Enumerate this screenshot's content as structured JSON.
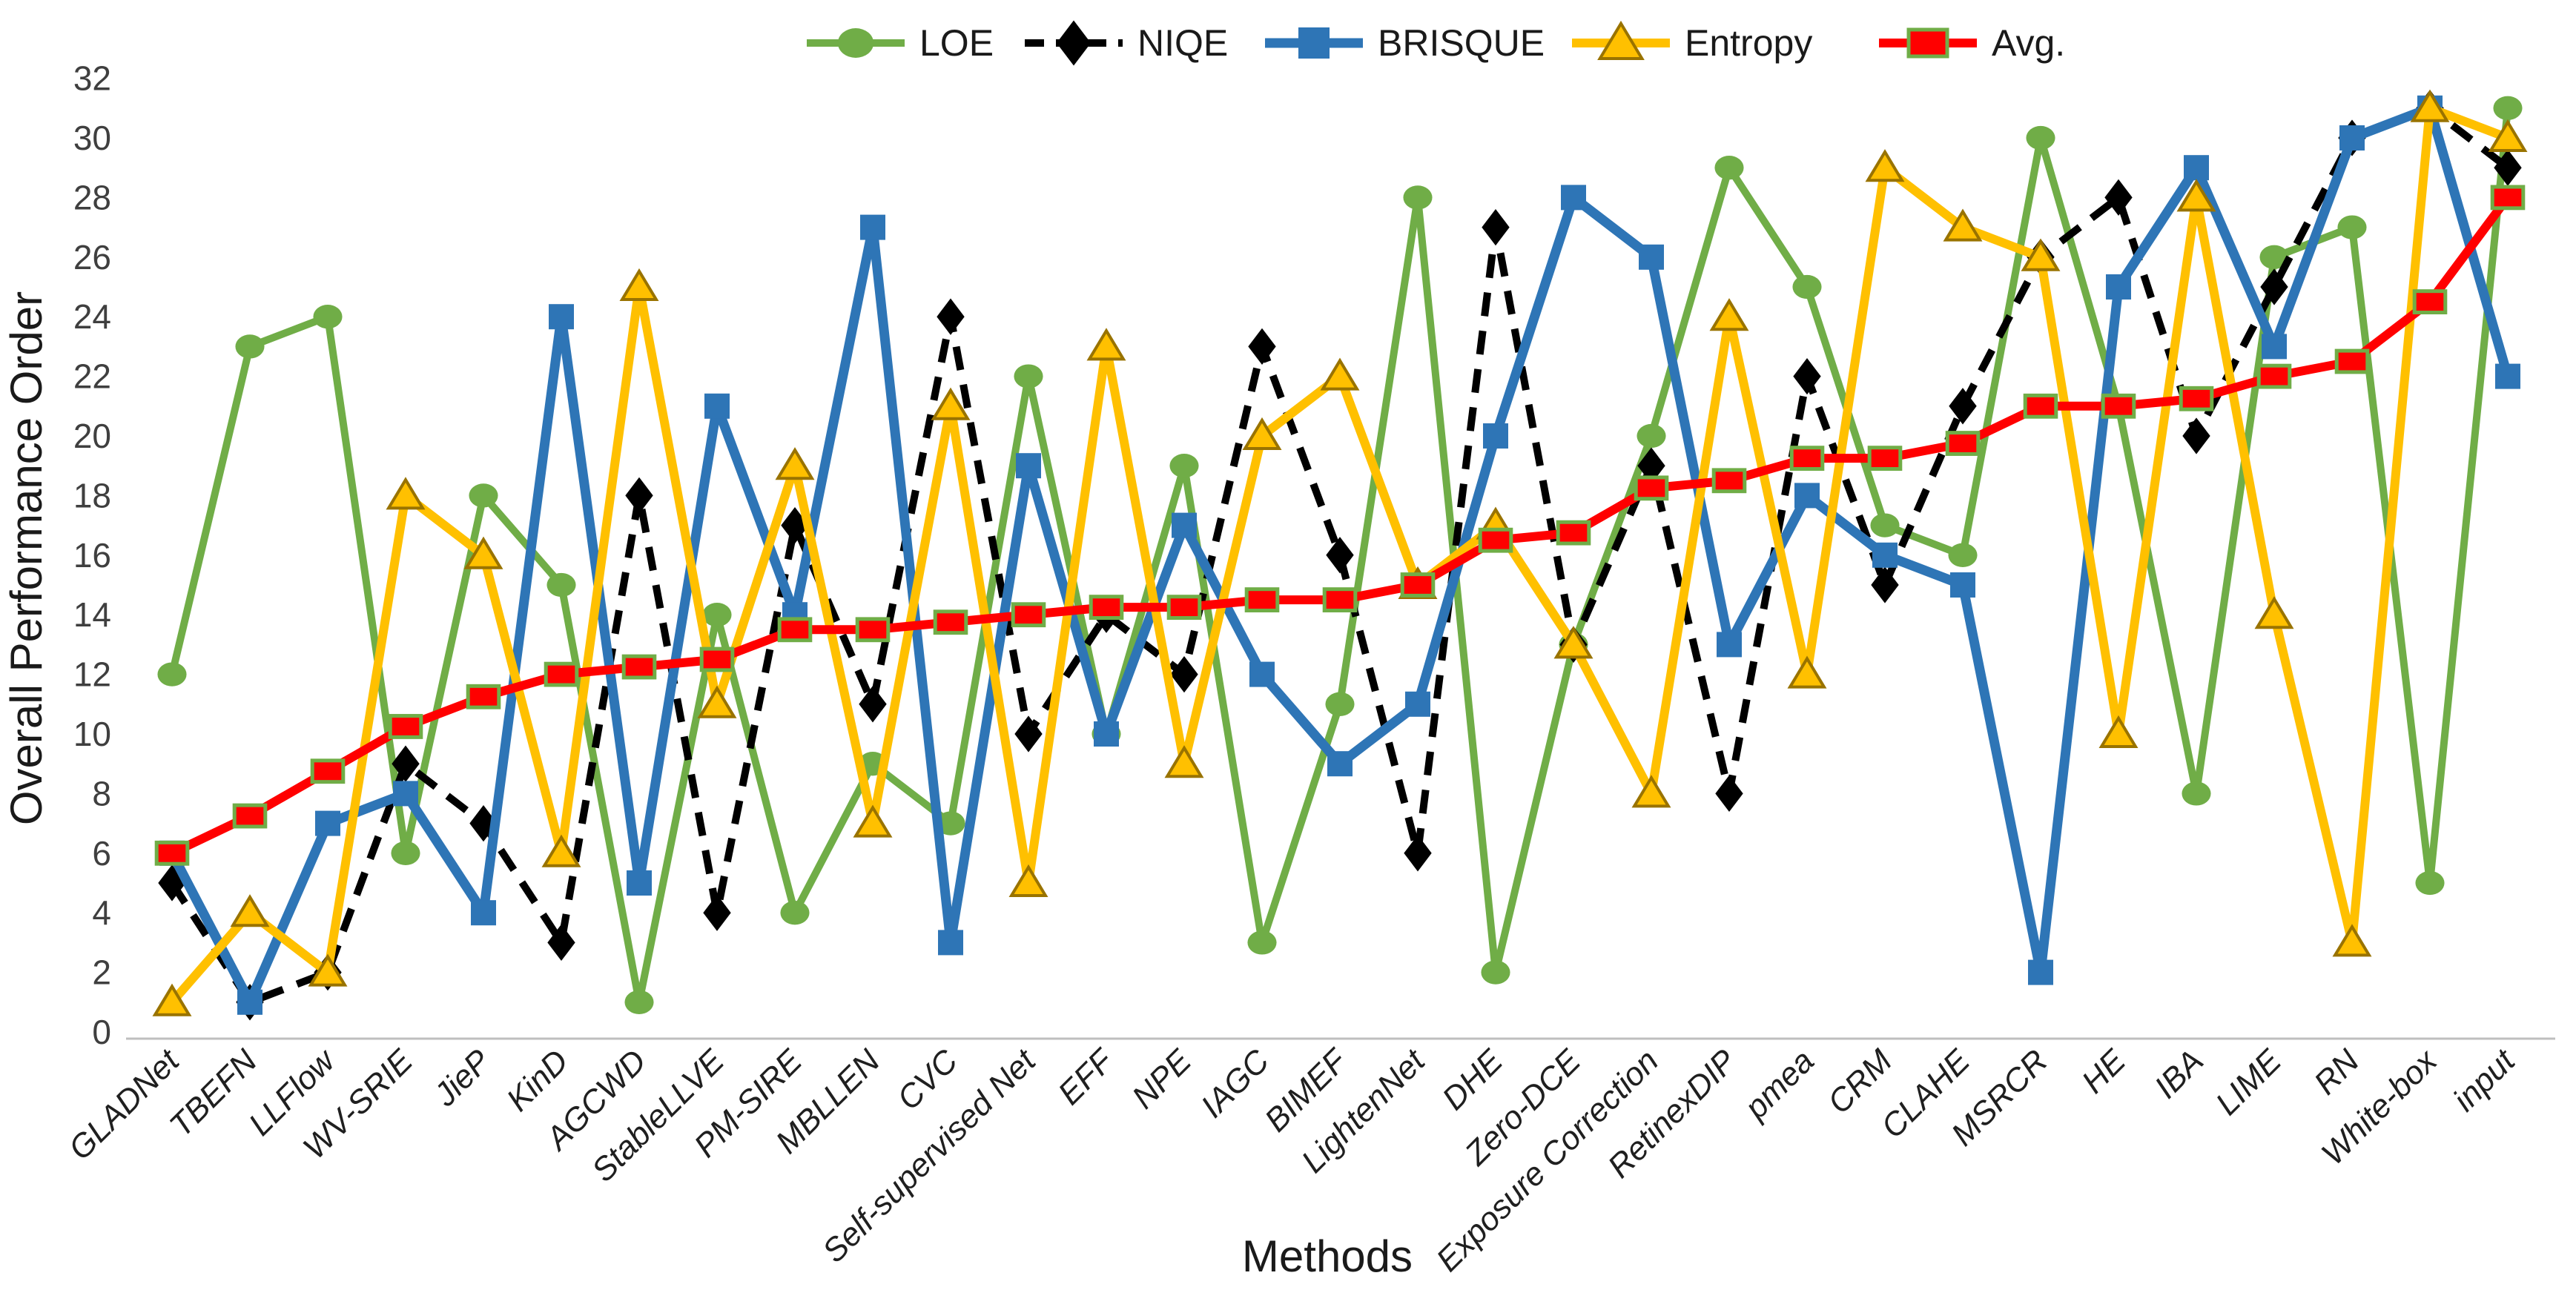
{
  "chart_data": {
    "type": "line",
    "title": "",
    "xlabel": "Methods",
    "ylabel": "Overall Performance Order",
    "ylim": [
      0,
      32
    ],
    "ytick_step": 2,
    "y_ticks": [
      0,
      2,
      4,
      6,
      8,
      10,
      12,
      14,
      16,
      18,
      20,
      22,
      24,
      26,
      28,
      30,
      32
    ],
    "grid": false,
    "legend_position": "top-center",
    "axis_line_color": "#BFBFBF",
    "text_color": "#262626",
    "categories": [
      "GLADNet",
      "TBEFN",
      "LLFlow",
      "WV-SRIE",
      "JieP",
      "KinD",
      "AGCWD",
      "StableLLVE",
      "PM-SIRE",
      "MBLLEN",
      "CVC",
      "Self-supervised Net",
      "EFF",
      "NPE",
      "IAGC",
      "BIMEF",
      "LightenNet",
      "DHE",
      "Zero-DCE",
      "Exposure Correction",
      "RetinexDIP",
      "pmea",
      "CRM",
      "CLAHE",
      "MSRCR",
      "HE",
      "IBA",
      "LIME",
      "RN",
      "White-box",
      "input"
    ],
    "series": [
      {
        "name": "LOE",
        "color": "#70AD47",
        "marker": "circle",
        "marker_edge": "#5A8F37",
        "dashed": false,
        "values": [
          12,
          23,
          24,
          6,
          18,
          15,
          1,
          14,
          4,
          9,
          7,
          22,
          10,
          19,
          3,
          11,
          28,
          2,
          13,
          20,
          29,
          25,
          17,
          16,
          30,
          21,
          8,
          26,
          27,
          5,
          31
        ]
      },
      {
        "name": "NIQE",
        "color": "#000000",
        "marker": "diamond",
        "marker_edge": "#000000",
        "dashed": true,
        "values": [
          5,
          1,
          2,
          9,
          7,
          3,
          18,
          4,
          17,
          11,
          24,
          10,
          14,
          12,
          23,
          16,
          6,
          27,
          13,
          19,
          8,
          22,
          15,
          21,
          26,
          28,
          20,
          25,
          30,
          31,
          29
        ]
      },
      {
        "name": "BRISQUE",
        "color": "#2E75B6",
        "marker": "square",
        "marker_edge": "#2E75B6",
        "dashed": false,
        "values": [
          6,
          1,
          7,
          8,
          4,
          24,
          5,
          21,
          14,
          27,
          3,
          19,
          10,
          17,
          12,
          9,
          11,
          20,
          28,
          26,
          13,
          18,
          16,
          15,
          2,
          25,
          29,
          23,
          30,
          31,
          22
        ]
      },
      {
        "name": "Entropy",
        "color": "#FFC000",
        "marker": "triangle",
        "marker_edge": "#997300",
        "dashed": false,
        "values": [
          1,
          4,
          2,
          18,
          16,
          6,
          25,
          11,
          19,
          7,
          21,
          5,
          23,
          9,
          20,
          22,
          15,
          17,
          13,
          8,
          24,
          12,
          29,
          27,
          26,
          10,
          28,
          14,
          3,
          31,
          30
        ]
      },
      {
        "name": "Avg.",
        "color": "#FF0000",
        "marker": "square-outlined",
        "marker_edge": "#70AD47",
        "dashed": false,
        "values": [
          6,
          7.25,
          8.75,
          10.25,
          11.25,
          12,
          12.25,
          12.5,
          13.5,
          13.5,
          13.75,
          14,
          14.25,
          14.25,
          14.5,
          14.5,
          15,
          16.5,
          16.75,
          18.25,
          18.5,
          19.25,
          19.25,
          19.75,
          21,
          21,
          21.25,
          22,
          22.5,
          24.5,
          28
        ]
      }
    ]
  }
}
